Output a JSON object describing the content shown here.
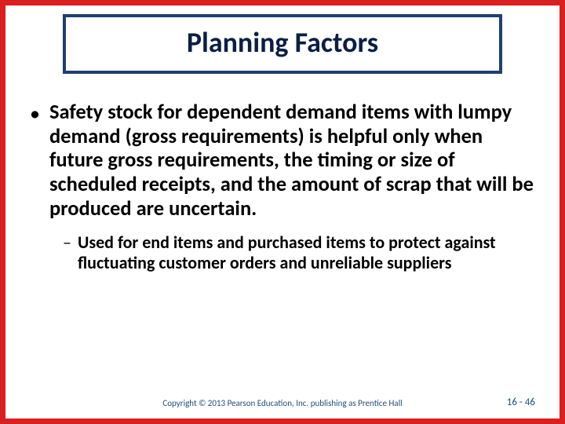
{
  "colors": {
    "outer_border": "#d91f1f",
    "title_border": "#1f3f73",
    "title_text": "#0b1f44",
    "body_text": "#000000",
    "footer_text": "#1f4e79",
    "background": "#ffffff"
  },
  "title": "Planning Factors",
  "bullet": {
    "text": "Safety stock for dependent demand items with lumpy demand (gross requirements) is helpful only when future gross requirements, the timing or size of scheduled receipts, and the amount of scrap that will be produced are uncertain."
  },
  "sub": {
    "text": "Used for end items and purchased items to protect against fluctuating customer orders and unreliable suppliers"
  },
  "footer": {
    "copyright": "Copyright © 2013 Pearson Education, Inc. publishing as Prentice Hall",
    "page": "16 - 46"
  }
}
